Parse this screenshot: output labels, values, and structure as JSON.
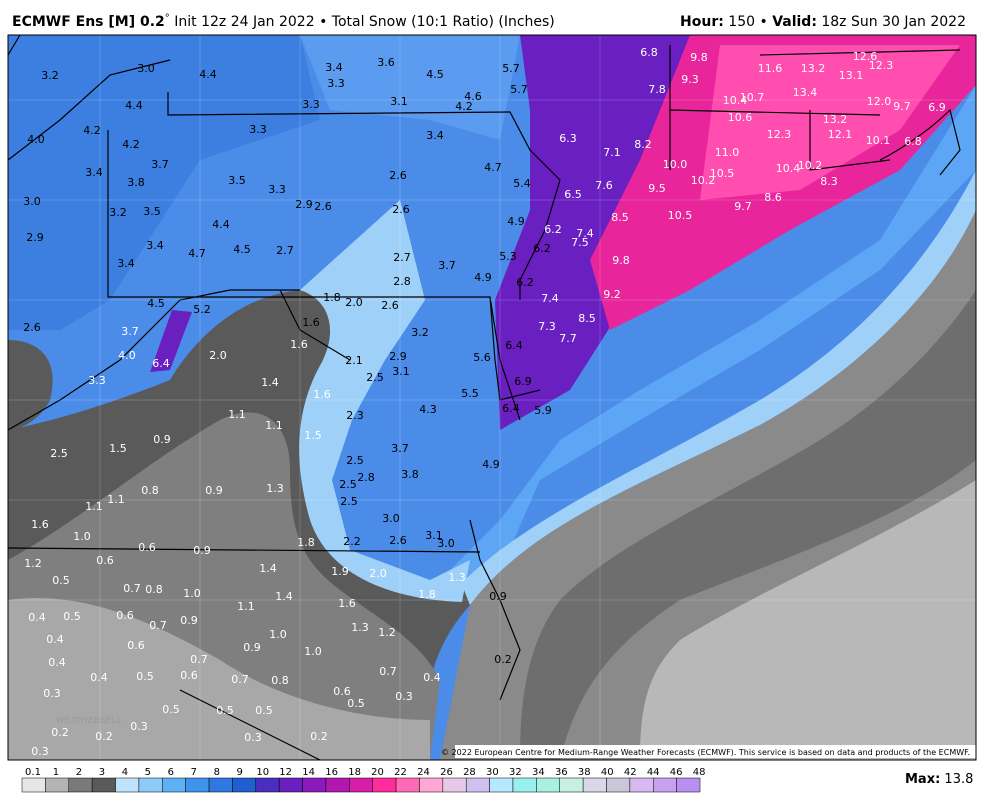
{
  "header": {
    "model": "ECMWF Ens [M] 0.2",
    "degree": "°",
    "description": " Init 12z 24 Jan 2022 • Total Snow (10:1 Ratio) (Inches)",
    "hour_label": "Hour:",
    "hour": " 150 • ",
    "valid_label": "Valid:",
    "valid": " 18z Sun 30 Jan 2022"
  },
  "map_labels": [
    "3.2",
    "3.0",
    "4.4",
    "3.4",
    "3.6",
    "3.3",
    "4.5",
    "5.7",
    "6.8",
    "9.8",
    "11.6",
    "13.2",
    "12.6",
    "13.1",
    "12.3",
    "4.4",
    "3.3",
    "3.1",
    "4.6",
    "4.2",
    "5.7",
    "9.3",
    "7.8",
    "13.4",
    "10.4",
    "10.7",
    "12.0",
    "9.7",
    "6.9",
    "4.0",
    "4.2",
    "4.2",
    "3.3",
    "3.4",
    "6.3",
    "10.6",
    "12.3",
    "13.2",
    "12.1",
    "10.1",
    "6.8",
    "7.1",
    "8.2",
    "11.0",
    "3.4",
    "3.7",
    "3.8",
    "3.5",
    "3.3",
    "2.6",
    "4.7",
    "5.4",
    "10.0",
    "10.2",
    "10.5",
    "10.4",
    "10.2",
    "8.3",
    "7.6",
    "9.5",
    "6.5",
    "3.0",
    "3.2",
    "3.5",
    "2.9",
    "2.6",
    "2.6",
    "9.7",
    "8.6",
    "10.5",
    "8.5",
    "2.9",
    "4.4",
    "3.4",
    "4.7",
    "4.5",
    "2.7",
    "4.9",
    "6.2",
    "7.4",
    "7.5",
    "6.2",
    "2.7",
    "3.7",
    "5.3",
    "9.8",
    "4.9",
    "3.4",
    "2.8",
    "6.2",
    "9.2",
    "7.4",
    "1.8",
    "2.0",
    "2.6",
    "4.5",
    "5.2",
    "2.6",
    "3.7",
    "1.6",
    "7.3",
    "8.5",
    "7.7",
    "3.2",
    "4.0",
    "6.4",
    "2.0",
    "1.6",
    "2.1",
    "2.9",
    "3.1",
    "5.6",
    "6.4",
    "3.3",
    "2.5",
    "6.9",
    "1.4",
    "1.6",
    "5.5",
    "2.3",
    "4.3",
    "6.4",
    "5.9",
    "1.1",
    "1.1",
    "1.5",
    "0.9",
    "1.5",
    "3.7",
    "2.5",
    "2.5",
    "4.9",
    "2.8",
    "3.8",
    "2.5",
    "1.1",
    "1.1",
    "0.8",
    "0.9",
    "1.3",
    "2.5",
    "1.6",
    "3.0",
    "1.0",
    "0.6",
    "0.9",
    "1.8",
    "2.2",
    "2.6",
    "3.1",
    "3.0",
    "1.2",
    "0.6",
    "1.4",
    "1.9",
    "2.0",
    "1.3",
    "0.5",
    "0.7",
    "0.8",
    "1.0",
    "1.4",
    "1.8",
    "0.9",
    "1.1",
    "1.6",
    "0.4",
    "0.5",
    "0.6",
    "0.7",
    "0.9",
    "1.3",
    "1.2",
    "0.4",
    "1.0",
    "0.6",
    "0.9",
    "1.0",
    "0.2",
    "0.4",
    "0.7",
    "0.4",
    "0.5",
    "0.6",
    "0.7",
    "0.8",
    "0.7",
    "0.4",
    "0.3",
    "0.6",
    "0.3",
    "0.5",
    "0.5",
    "0.5",
    "0.5",
    "0.2",
    "0.3",
    "0.2",
    "0.3",
    "0.2",
    "0.3"
  ],
  "logo": "WEATHERBELL",
  "copyright": "© 2022 European Centre for Medium-Range Weather Forecasts (ECMWF). This service is based on data and products of the ECMWF.",
  "colorbar_labels": [
    "0.1",
    "1",
    "2",
    "3",
    "4",
    "5",
    "6",
    "7",
    "8",
    "9",
    "10",
    "12",
    "14",
    "16",
    "18",
    "20",
    "22",
    "24",
    "26",
    "28",
    "30",
    "32",
    "34",
    "36",
    "38",
    "40",
    "42",
    "44",
    "46",
    "48"
  ],
  "max_label": "Max:",
  "max": " 13.8"
}
